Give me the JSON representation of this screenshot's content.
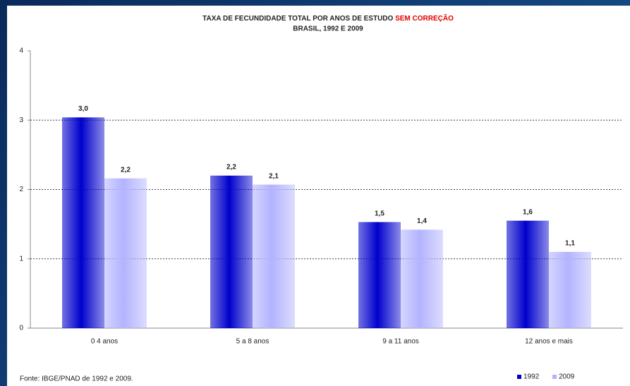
{
  "chart_data": {
    "type": "bar",
    "title_parts": [
      "TAXA DE FECUNDIDADE TOTAL POR ANOS DE ESTUDO",
      "SEM CORREÇÃO"
    ],
    "subtitle": "BRASIL, 1992 E 2009",
    "categories": [
      "0 4 anos",
      "5 a 8 anos",
      "9 a 11 anos",
      "12 anos e mais"
    ],
    "series": [
      {
        "name": "1992",
        "color": "#0000cc",
        "values": [
          3.04,
          2.2,
          1.53,
          1.55
        ],
        "value_labels": [
          "3,0",
          "2,2",
          "1,5",
          "1,6"
        ]
      },
      {
        "name": "2009",
        "color": "#b3b3ff",
        "values": [
          2.16,
          2.07,
          1.42,
          1.1
        ],
        "value_labels": [
          "2,2",
          "2,1",
          "1,4",
          "1,1"
        ]
      }
    ],
    "ylim": [
      0,
      4
    ],
    "yticks": [
      0,
      1,
      2,
      3,
      4
    ],
    "grid": true,
    "source": "Fonte: IBGE/PNAD de 1992 e 2009."
  }
}
